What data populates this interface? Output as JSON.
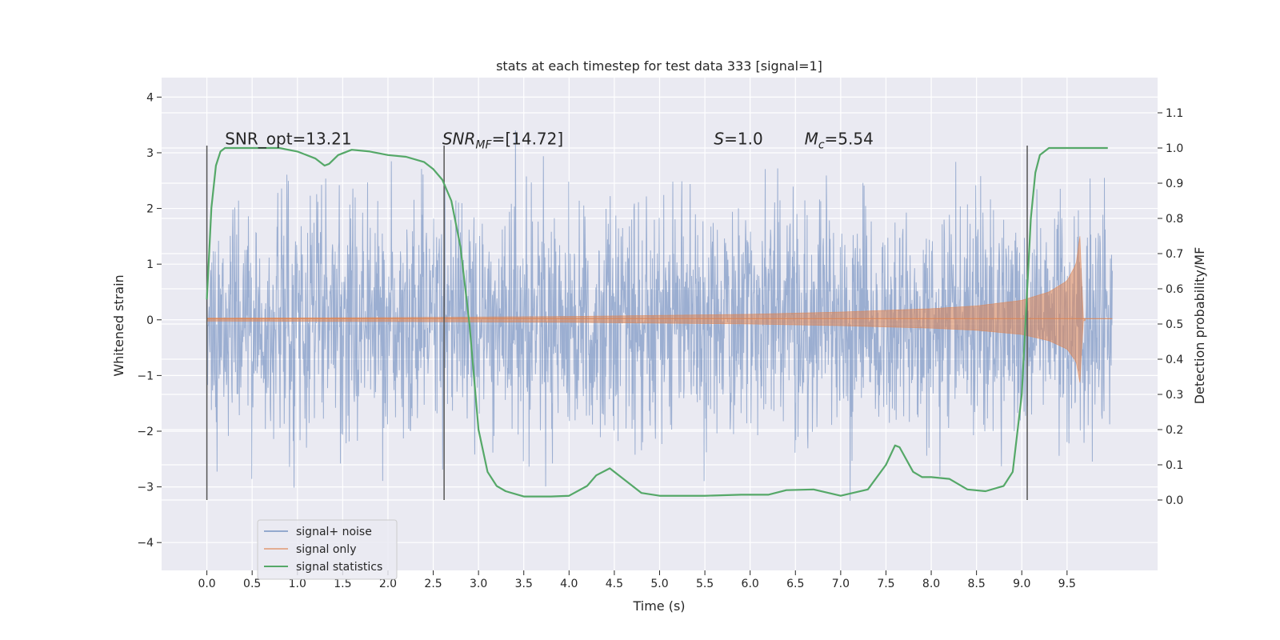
{
  "chart_data": {
    "type": "line",
    "title": "stats at each timestep for test data 333 [signal=1]",
    "xlabel": "Time (s)",
    "ylabel_left": "Whitened strain",
    "ylabel_right": "Detection probability/MF",
    "xlim": [
      -0.5,
      10.5
    ],
    "ylim_left": [
      -4.5,
      4.35
    ],
    "ylim_right": [
      -0.2,
      1.2
    ],
    "x_ticks": [
      0.0,
      0.5,
      1.0,
      1.5,
      2.0,
      2.5,
      3.0,
      3.5,
      4.0,
      4.5,
      5.0,
      5.5,
      6.0,
      6.5,
      7.0,
      7.5,
      8.0,
      8.5,
      9.0,
      9.5
    ],
    "x_tick_labels": [
      "0.0",
      "0.5",
      "1.0",
      "1.5",
      "2.0",
      "2.5",
      "3.0",
      "3.5",
      "4.0",
      "4.5",
      "5.0",
      "5.5",
      "6.0",
      "6.5",
      "7.0",
      "7.5",
      "8.0",
      "8.5",
      "9.0",
      "9.5"
    ],
    "y_left_ticks": [
      -4,
      -3,
      -2,
      -1,
      0,
      1,
      2,
      3,
      4
    ],
    "y_left_tick_labels": [
      "−4",
      "−3",
      "−2",
      "−1",
      "0",
      "1",
      "2",
      "3",
      "4"
    ],
    "y_right_ticks": [
      0.0,
      0.1,
      0.2,
      0.3,
      0.4,
      0.5,
      0.6,
      0.7,
      0.8,
      0.9,
      1.0,
      1.1
    ],
    "y_right_tick_labels": [
      "0.0",
      "0.1",
      "0.2",
      "0.3",
      "0.4",
      "0.5",
      "0.6",
      "0.7",
      "0.8",
      "0.9",
      "1.0",
      "1.1"
    ],
    "grid": true,
    "legend_position": "lower-left",
    "series": [
      {
        "name": "signal+ noise",
        "color": "#4c72b0",
        "axis": "left",
        "style": "noise",
        "x_range": [
          0.0,
          10.0
        ],
        "approx_sigma": 1.0
      },
      {
        "name": "signal only",
        "color": "#dd8452",
        "axis": "left",
        "style": "chirp",
        "x_range": [
          0.0,
          9.7
        ],
        "envelope": [
          [
            0.0,
            0.03
          ],
          [
            2.0,
            0.04
          ],
          [
            4.0,
            0.06
          ],
          [
            6.0,
            0.1
          ],
          [
            7.0,
            0.14
          ],
          [
            8.0,
            0.2
          ],
          [
            8.5,
            0.25
          ],
          [
            9.0,
            0.35
          ],
          [
            9.3,
            0.5
          ],
          [
            9.5,
            0.7
          ],
          [
            9.6,
            1.0
          ],
          [
            9.65,
            1.6
          ],
          [
            9.67,
            0.02
          ],
          [
            10.0,
            0.02
          ]
        ]
      },
      {
        "name": "signal statistics",
        "color": "#55a868",
        "axis": "right",
        "style": "line",
        "x": [
          0.0,
          0.05,
          0.1,
          0.15,
          0.2,
          0.3,
          0.5,
          0.8,
          1.0,
          1.2,
          1.3,
          1.35,
          1.45,
          1.6,
          1.8,
          2.0,
          2.2,
          2.4,
          2.5,
          2.6,
          2.7,
          2.8,
          2.9,
          3.0,
          3.1,
          3.2,
          3.3,
          3.5,
          3.8,
          4.0,
          4.2,
          4.3,
          4.45,
          4.6,
          4.8,
          5.0,
          5.5,
          5.9,
          6.2,
          6.4,
          6.7,
          7.0,
          7.3,
          7.5,
          7.6,
          7.65,
          7.8,
          7.9,
          8.0,
          8.2,
          8.4,
          8.6,
          8.8,
          8.9,
          9.0,
          9.05,
          9.1,
          9.15,
          9.2,
          9.3,
          9.5,
          9.7,
          9.95
        ],
        "y": [
          0.57,
          0.83,
          0.95,
          0.99,
          1.0,
          1.0,
          1.0,
          1.0,
          0.99,
          0.97,
          0.95,
          0.955,
          0.98,
          0.995,
          0.99,
          0.98,
          0.975,
          0.96,
          0.94,
          0.91,
          0.85,
          0.72,
          0.5,
          0.2,
          0.08,
          0.04,
          0.025,
          0.01,
          0.01,
          0.012,
          0.04,
          0.07,
          0.09,
          0.06,
          0.02,
          0.012,
          0.012,
          0.015,
          0.015,
          0.028,
          0.03,
          0.012,
          0.03,
          0.1,
          0.155,
          0.15,
          0.08,
          0.065,
          0.065,
          0.06,
          0.03,
          0.025,
          0.04,
          0.08,
          0.3,
          0.55,
          0.8,
          0.93,
          0.98,
          1.0,
          1.0,
          1.0,
          1.0
        ]
      }
    ],
    "vertical_lines": [
      {
        "x": 0.0,
        "y_range_right": [
          0.0,
          1.0
        ],
        "color": "#555555"
      },
      {
        "x": 2.62,
        "y_range_right": [
          0.0,
          1.0
        ],
        "color": "#555555"
      },
      {
        "x": 9.06,
        "y_range_right": [
          0.0,
          1.0
        ],
        "color": "#555555"
      }
    ],
    "annotations": [
      {
        "text": "SNR_opt=13.21",
        "x": 0.2,
        "y_right": 1.01,
        "italic": false
      },
      {
        "text": "SNR",
        "sub": "MF",
        "suffix": "=[14.72]",
        "x": 2.6,
        "y_right": 1.01,
        "italic": true
      },
      {
        "text": "S",
        "suffix": "=1.0",
        "x": 5.6,
        "y_right": 1.01,
        "italic": true
      },
      {
        "text": "M",
        "sub": "c",
        "suffix": "=5.54",
        "x": 6.6,
        "y_right": 1.01,
        "italic": true
      }
    ]
  }
}
